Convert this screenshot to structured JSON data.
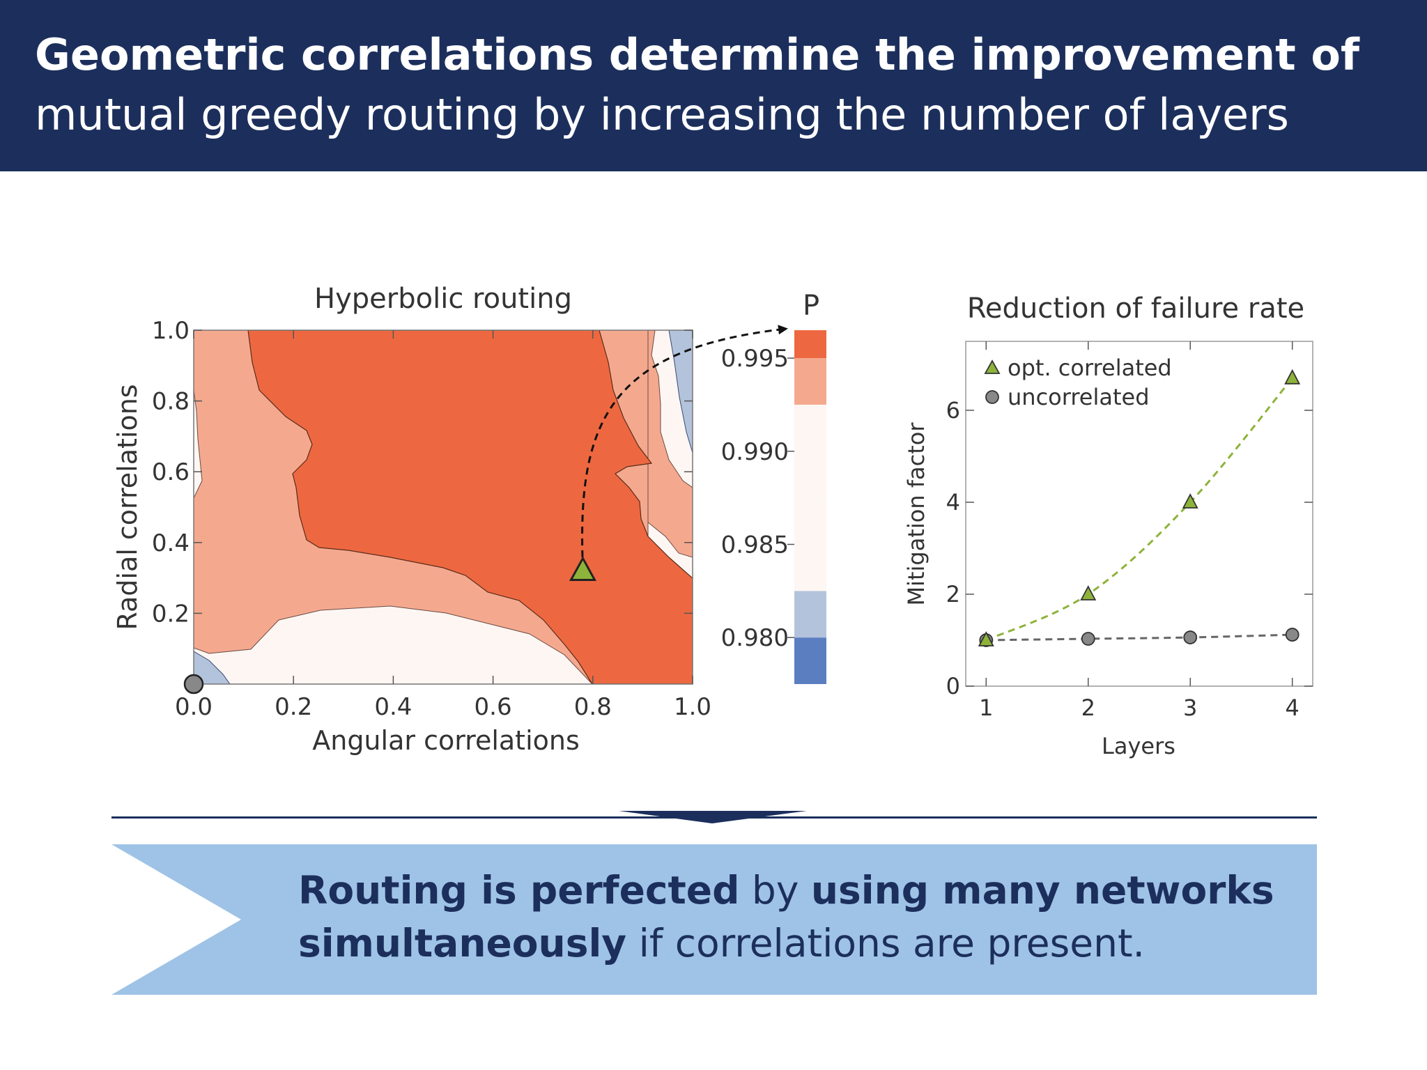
{
  "header": {
    "title_bold": "Geometric correlations determine the improvement of",
    "title_light": "mutual greedy routing by increasing the number of layers"
  },
  "colors": {
    "header_bg": "#1c2f5c",
    "banner_bg": "#9fc3e6",
    "level_1": "#5b7ec1",
    "level_2": "#b3c3dc",
    "level_3": "#fdf6f3",
    "level_4": "#f4a98f",
    "level_5": "#ed6840",
    "correlated": "#8db33a",
    "uncorrelated": "#888888"
  },
  "conclusion": {
    "part1": "Routing is perfected",
    "part2": " by ",
    "part3": "using many networks simultaneously",
    "part4": " if correlations are present."
  },
  "chart_data": [
    {
      "type": "heatmap",
      "title": "Hyperbolic routing",
      "xlabel": "Angular correlations",
      "ylabel": "Radial correlations",
      "xlim": [
        0.0,
        1.0
      ],
      "ylim": [
        0.0,
        1.0
      ],
      "xticks": [
        "0.0",
        "0.2",
        "0.4",
        "0.6",
        "0.8",
        "1.0"
      ],
      "yticks": [
        "0.2",
        "0.4",
        "0.6",
        "0.8",
        "1.0"
      ],
      "colorbar": {
        "label": "P",
        "ticks": [
          "0.995",
          "0.990",
          "0.985",
          "0.980"
        ],
        "tick_values": [
          0.995,
          0.99,
          0.985,
          0.98
        ],
        "range": [
          0.9775,
          0.9965
        ],
        "levels": [
          0.9775,
          0.98,
          0.9825,
          0.9875,
          0.9925,
          0.995,
          0.9965
        ]
      },
      "markers": [
        {
          "shape": "circle",
          "x": 0.0,
          "y": 0.0
        },
        {
          "shape": "triangle",
          "x": 0.78,
          "y": 0.32
        }
      ]
    },
    {
      "type": "line",
      "title": "Reduction of failure rate",
      "xlabel": "Layers",
      "ylabel": "Mitigation factor",
      "x": [
        1,
        2,
        3,
        4
      ],
      "xticks": [
        "1",
        "2",
        "3",
        "4"
      ],
      "yticks": [
        "0",
        "2",
        "4",
        "6"
      ],
      "xlim": [
        0.8,
        4.2
      ],
      "ylim": [
        0,
        7.5
      ],
      "legend": "top-left",
      "series": [
        {
          "name": "opt. correlated",
          "marker": "triangle",
          "values": [
            1.0,
            2.0,
            4.0,
            6.7
          ]
        },
        {
          "name": "uncorrelated",
          "marker": "circle",
          "values": [
            1.0,
            1.03,
            1.06,
            1.12
          ]
        }
      ]
    }
  ]
}
